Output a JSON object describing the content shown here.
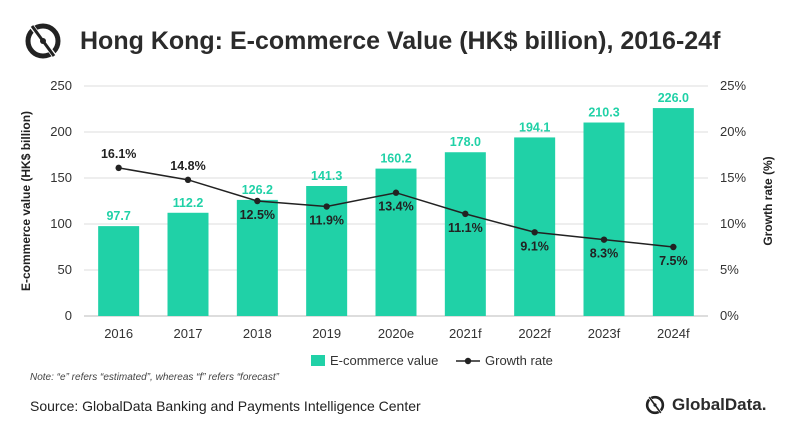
{
  "header": {
    "title": "Hong Kong: E-commerce Value (HK$ billion), 2016-24f"
  },
  "colors": {
    "bar": "#20d1a7",
    "line": "#222222",
    "grid": "#dcdcdc"
  },
  "chart_data": {
    "type": "bar",
    "title": "Hong Kong: E-commerce Value (HK$ billion), 2016-24f",
    "categories": [
      "2016",
      "2017",
      "2018",
      "2019",
      "2020e",
      "2021f",
      "2022f",
      "2023f",
      "2024f"
    ],
    "series": [
      {
        "name": "E-commerce value",
        "type": "bar",
        "axis": "left",
        "values": [
          97.7,
          112.2,
          126.2,
          141.3,
          160.2,
          178.0,
          194.1,
          210.3,
          226.0
        ],
        "labels": [
          "97.7",
          "112.2",
          "126.2",
          "141.3",
          "160.2",
          "178.0",
          "194.1",
          "210.3",
          "226.0"
        ]
      },
      {
        "name": "Growth rate",
        "type": "line",
        "axis": "right",
        "values": [
          16.1,
          14.8,
          12.5,
          11.9,
          13.4,
          11.1,
          9.1,
          8.3,
          7.5
        ],
        "labels": [
          "16.1%",
          "14.8%",
          "12.5%",
          "11.9%",
          "13.4%",
          "11.1%",
          "9.1%",
          "8.3%",
          "7.5%"
        ]
      }
    ],
    "ylabel": "E-commerce value (HK$ billion)",
    "ylim": [
      0,
      250
    ],
    "yticks": [
      "0",
      "50",
      "100",
      "150",
      "200",
      "250"
    ],
    "y2label": "Growth rate (%)",
    "y2lim": [
      0,
      25
    ],
    "y2ticks": [
      "0%",
      "5%",
      "10%",
      "15%",
      "20%",
      "25%"
    ],
    "grid": true,
    "legend": "bottom"
  },
  "footer": {
    "note": "Note: “e” refers “estimated”, whereas “f” refers “forecast”",
    "source": "Source: GlobalData Banking and Payments Intelligence Center",
    "brand": "GlobalData."
  }
}
